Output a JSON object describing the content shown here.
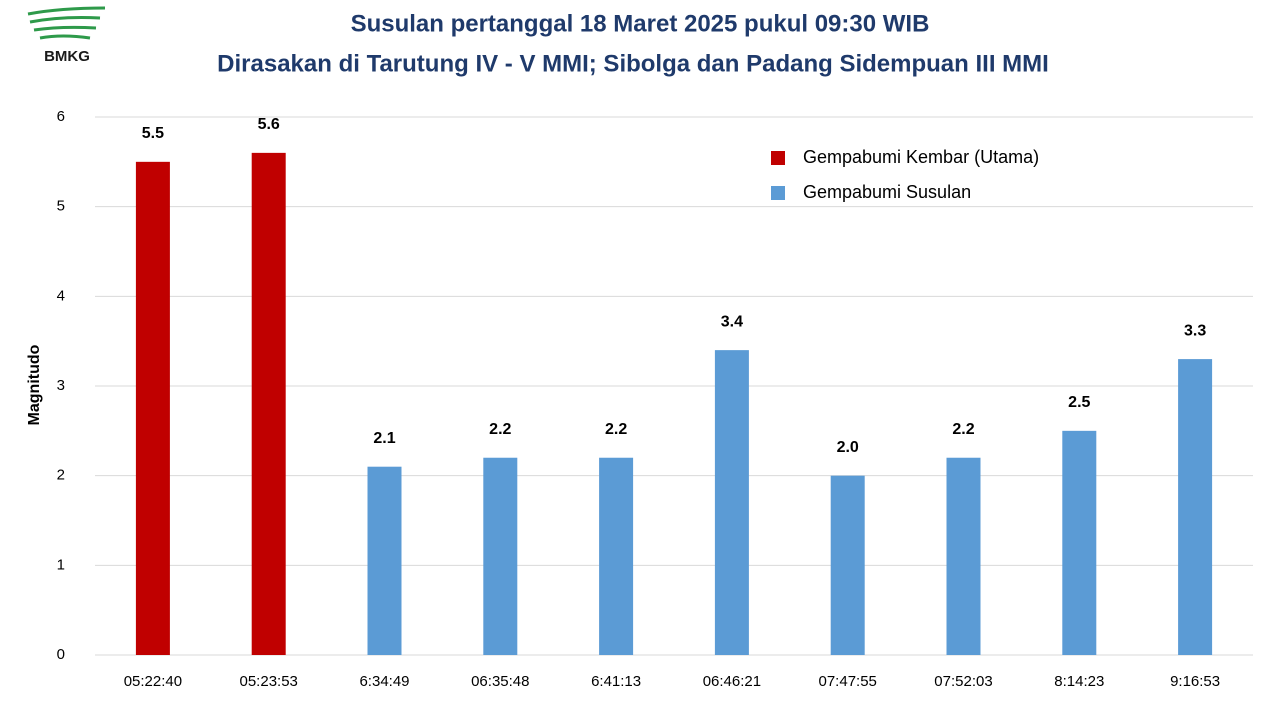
{
  "logo_text": "BMKG",
  "chart_data": {
    "type": "bar",
    "title": "Susulan pertanggal 18 Maret 2025 pukul 09:30 WIB",
    "subtitle": "Dirasakan di Tarutung IV - V MMI; Sibolga dan Padang Sidempuan III MMI",
    "y_label": "Magnitudo",
    "categories": [
      "05:22:40",
      "05:23:53",
      "6:34:49",
      "06:35:48",
      "6:41:13",
      "06:46:21",
      "07:47:55",
      "07:52:03",
      "8:14:23",
      "9:16:53"
    ],
    "series": [
      {
        "name": "Gempabumi Kembar (Utama)",
        "color": "#c00000",
        "values": [
          5.5,
          5.6,
          null,
          null,
          null,
          null,
          null,
          null,
          null,
          null
        ]
      },
      {
        "name": "Gempabumi Susulan",
        "color": "#5b9bd5",
        "values": [
          null,
          null,
          2.1,
          2.2,
          2.2,
          3.4,
          2.0,
          2.2,
          2.5,
          3.3
        ],
        "value_labels": [
          null,
          null,
          "2.1",
          "2.2",
          "2.2",
          "3.4",
          "2.0",
          "2.2",
          "2.5",
          "3.3"
        ]
      }
    ],
    "ylim": [
      0,
      6
    ],
    "yticks": [
      0,
      1,
      2,
      3,
      4,
      5,
      6
    ],
    "grid": true,
    "legend": "upper right"
  }
}
